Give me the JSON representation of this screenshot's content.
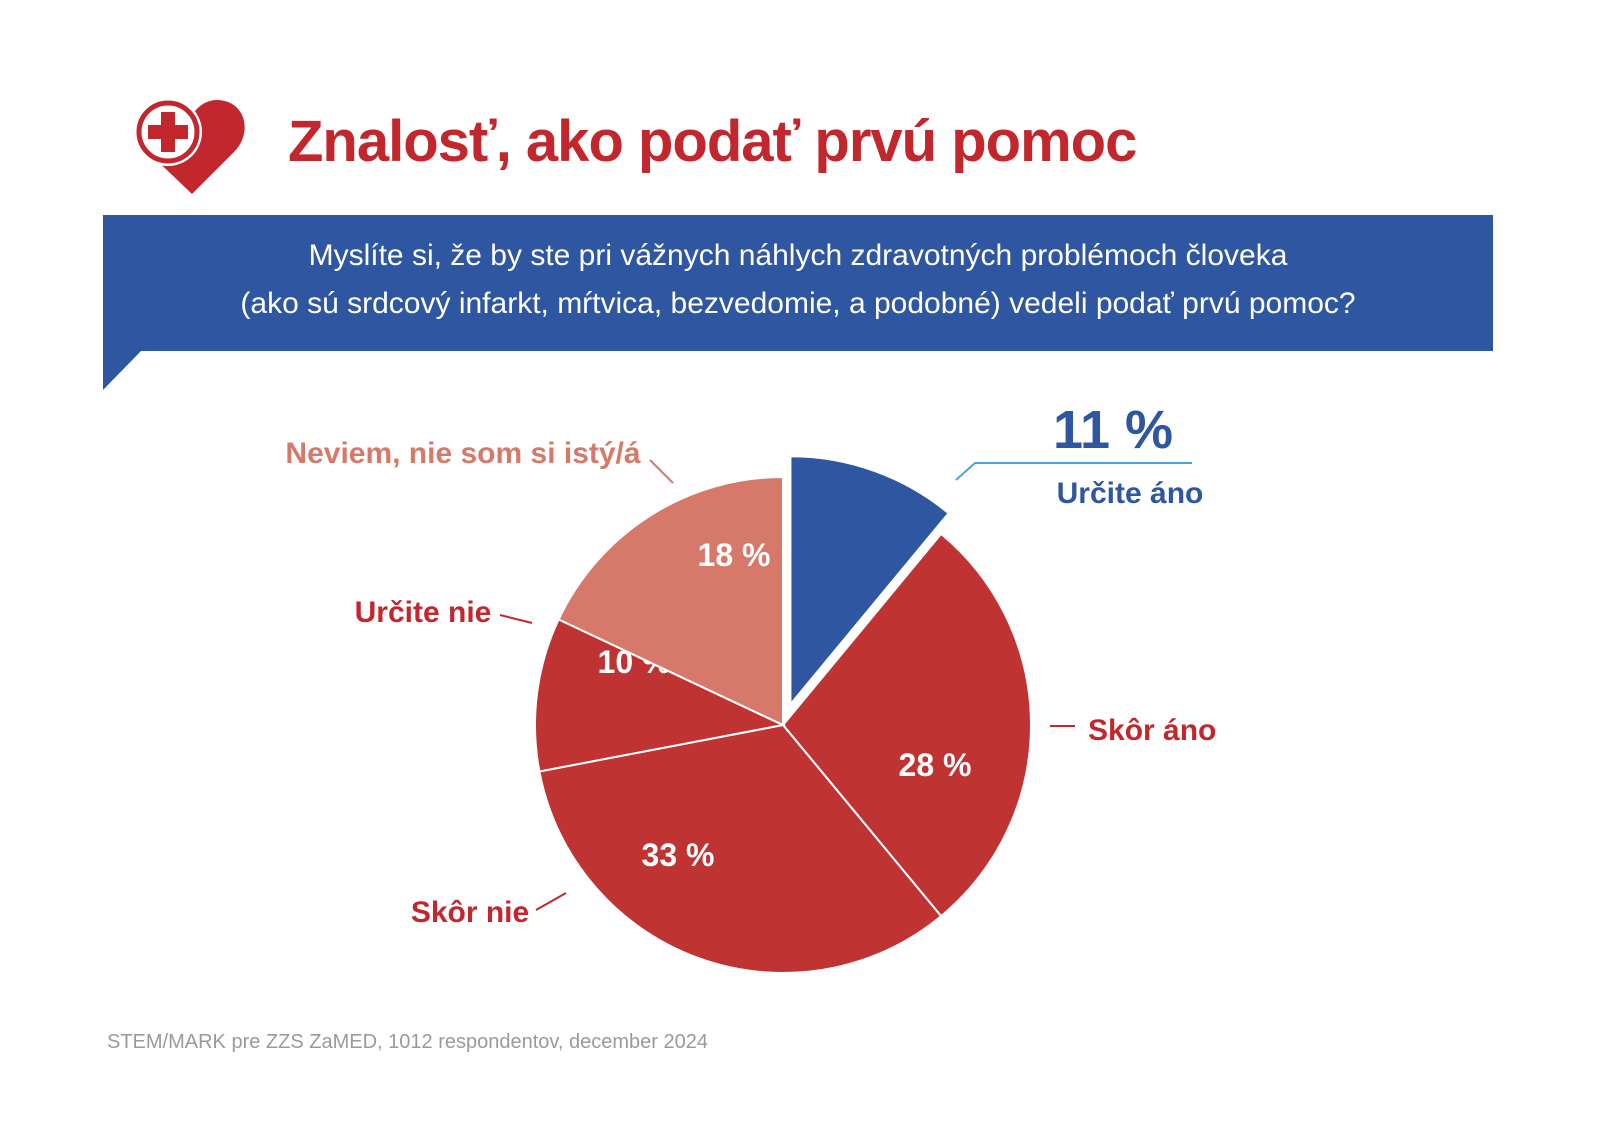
{
  "header": {
    "title": "Znalosť, ako podať prvú pomoc",
    "logo_icon": "heart-cross-icon"
  },
  "question": {
    "line1": "Myslíte si, že by ste pri vážnych náhlych zdravotných problémoch človeka",
    "line2": "(ako sú srdcový infarkt, mŕtvica, bezvedomie, a podobné) vedeli podať prvú pomoc?"
  },
  "colors": {
    "red": "#c1272d",
    "pie_red": "#bf3333",
    "salmon": "#d6796a",
    "blue": "#2e56a1",
    "light_blue": "#4aa3d8",
    "gray_text": "#9a9a9a"
  },
  "chart_data": {
    "type": "pie",
    "title": "",
    "slices": [
      {
        "label": "Určite áno",
        "value": 11,
        "display": "11 %",
        "color": "#2e56a1",
        "exploded": true
      },
      {
        "label": "Skôr áno",
        "value": 28,
        "display": "28 %",
        "color": "#bf3333",
        "exploded": false
      },
      {
        "label": "Skôr nie",
        "value": 33,
        "display": "33 %",
        "color": "#bf3333",
        "exploded": false
      },
      {
        "label": "Určite nie",
        "value": 10,
        "display": "10 %",
        "color": "#bf3333",
        "exploded": false
      },
      {
        "label": "Neviem, nie som si istý/á",
        "value": 18,
        "display": "18 %",
        "color": "#d6796a",
        "exploded": false
      }
    ],
    "start": "12 o'clock",
    "direction": "clockwise"
  },
  "footer": {
    "source": "STEM/MARK pre ZZS ZaMED, 1012 respondentov, december 2024"
  }
}
